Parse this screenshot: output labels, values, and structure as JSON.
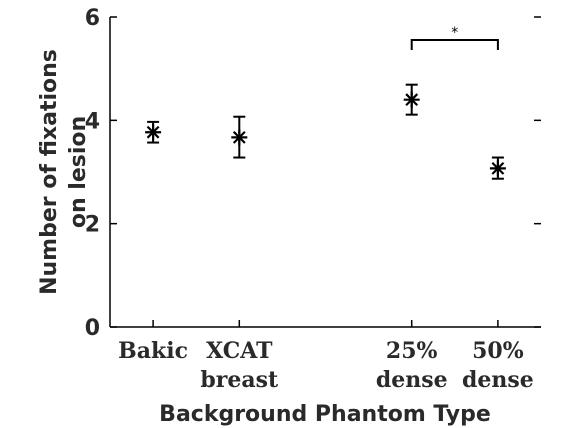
{
  "chart_data": {
    "type": "scatter",
    "xlabel": "Background Phantom Type",
    "ylabel": [
      "Number of fixations",
      "on lesion"
    ],
    "ylim": [
      0,
      6
    ],
    "yticks": [
      "0",
      "2",
      "4",
      "6"
    ],
    "grid": false,
    "legend": "none",
    "categories": [
      {
        "lines": [
          "Bakic"
        ],
        "x": 1
      },
      {
        "lines": [
          "XCAT",
          "breast"
        ],
        "x": 2
      },
      {
        "lines": [
          "25%",
          "dense"
        ],
        "x": 4
      },
      {
        "lines": [
          "50%",
          "dense"
        ],
        "x": 5
      }
    ],
    "xlim": [
      0.5,
      5.5
    ],
    "points": [
      {
        "x": 1,
        "y": 3.77,
        "err_low": 3.57,
        "err_high": 3.97
      },
      {
        "x": 2,
        "y": 3.67,
        "err_low": 3.28,
        "err_high": 4.07
      },
      {
        "x": 4,
        "y": 4.4,
        "err_low": 4.11,
        "err_high": 4.69
      },
      {
        "x": 5,
        "y": 3.07,
        "err_low": 2.87,
        "err_high": 3.28
      }
    ],
    "significance": [
      {
        "from": 4,
        "to": 5,
        "label": "*"
      }
    ]
  }
}
